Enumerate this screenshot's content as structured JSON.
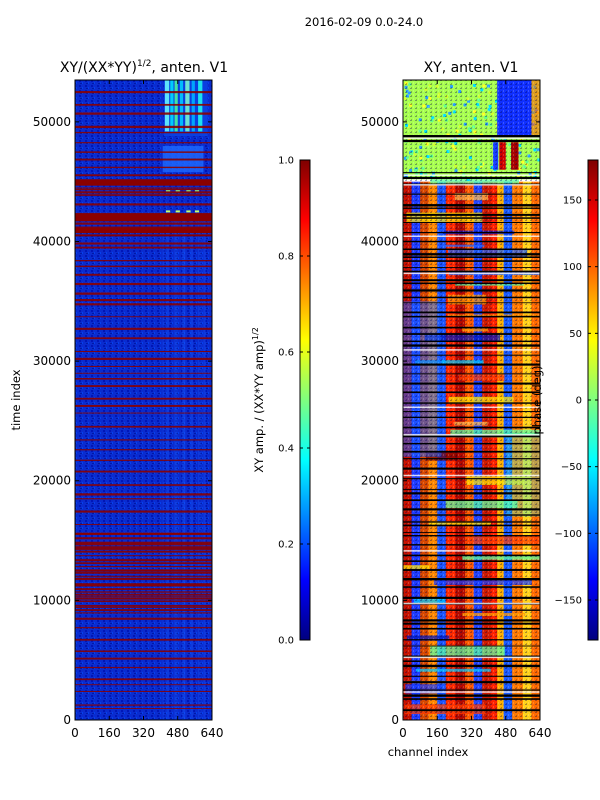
{
  "suptitle": "2016-02-09 0.0-24.0",
  "colors": {
    "jet_stops": [
      "#00007f",
      "#0000ff",
      "#007fff",
      "#00ffff",
      "#7fff7f",
      "#ffff00",
      "#ff7f00",
      "#ff0000",
      "#7f0000"
    ],
    "gap_row": "#8b0000",
    "phase_gap_row": "#000000"
  },
  "chart_data": [
    {
      "type": "heatmap",
      "title": "XY/(XX*YY)",
      "title_exponent": "1/2",
      "title_suffix": ", anten. V1",
      "xlabel": "",
      "ylabel": "time index",
      "xlim": [
        0,
        640
      ],
      "ylim": [
        0,
        53500
      ],
      "xticks": [
        "0",
        "160",
        "320",
        "480",
        "640"
      ],
      "yticks": [
        "0",
        "10000",
        "20000",
        "30000",
        "40000",
        "50000"
      ],
      "colorbar": {
        "label": "XY amp. / (XX*YY amp)",
        "label_exponent": "1/2",
        "range": [
          0.0,
          1.0
        ],
        "ticks": [
          "0.0",
          "0.2",
          "0.4",
          "0.6",
          "0.8",
          "1.0"
        ]
      }
    },
    {
      "type": "heatmap",
      "title": "XY, anten. V1",
      "xlabel": "channel index",
      "ylabel": "",
      "xlim": [
        0,
        640
      ],
      "ylim": [
        0,
        53500
      ],
      "xticks": [
        "0",
        "160",
        "320",
        "480",
        "640"
      ],
      "yticks": [
        "0",
        "10000",
        "20000",
        "30000",
        "40000",
        "50000"
      ],
      "colorbar": {
        "label": "phase (deg)",
        "range": [
          -180,
          180
        ],
        "ticks": [
          "−150",
          "−100",
          "−50",
          "0",
          "50",
          "100",
          "150"
        ]
      }
    }
  ]
}
